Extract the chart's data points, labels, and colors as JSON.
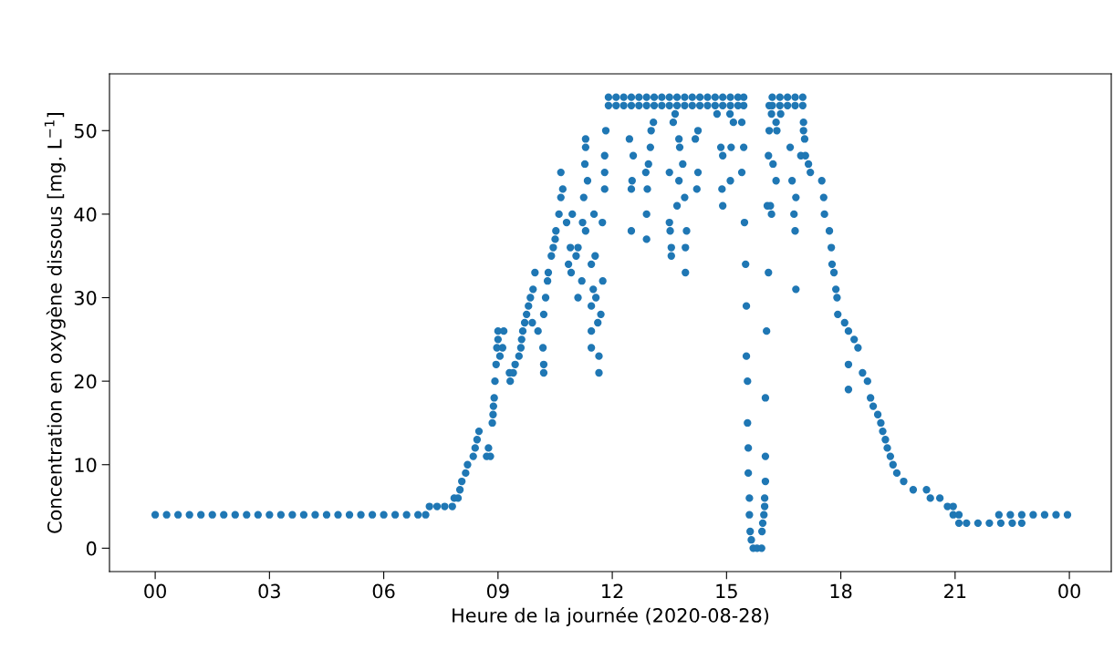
{
  "chart_data": {
    "type": "scatter",
    "xlabel": "Heure de la journée (2020-08-28)",
    "ylabel": "Concentration en oxygène dissous [mg. L$^{−1}$]",
    "marker": "circle",
    "xlim": [
      -1.2,
      25.1
    ],
    "ylim": [
      -2.8,
      56.8
    ],
    "xticks": [
      {
        "value": 0,
        "label": "00"
      },
      {
        "value": 3,
        "label": "03"
      },
      {
        "value": 6,
        "label": "06"
      },
      {
        "value": 9,
        "label": "09"
      },
      {
        "value": 12,
        "label": "12"
      },
      {
        "value": 15,
        "label": "15"
      },
      {
        "value": 18,
        "label": "18"
      },
      {
        "value": 21,
        "label": "21"
      },
      {
        "value": 24,
        "label": "00"
      }
    ],
    "yticks": [
      0,
      10,
      20,
      30,
      40,
      50
    ],
    "series": [
      {
        "color": "#1f77b4",
        "x": [
          0,
          0.3,
          0.6,
          0.9,
          1.2,
          1.5,
          1.8,
          2.1,
          2.4,
          2.7,
          3.0,
          3.3,
          3.6,
          3.9,
          4.2,
          4.5,
          4.8,
          5.1,
          5.4,
          5.7,
          6.0,
          6.3,
          6.6,
          6.9,
          7.1,
          7.2,
          7.4,
          7.6,
          7.8,
          7.85,
          7.95,
          8.0,
          8.05,
          8.15,
          8.2,
          8.35,
          8.4,
          8.45,
          8.5,
          8.7,
          8.8,
          8.75,
          8.85,
          8.87,
          8.88,
          8.9,
          8.92,
          8.95,
          8.97,
          9.0,
          9.0,
          9.15,
          9.05,
          9.12,
          9.3,
          9.32,
          9.4,
          9.45,
          9.55,
          9.6,
          9.62,
          9.65,
          9.7,
          9.75,
          9.8,
          9.85,
          9.92,
          9.97,
          9.9,
          10.05,
          10.18,
          10.2,
          10.2,
          10.2,
          10.25,
          10.3,
          10.32,
          10.4,
          10.45,
          10.5,
          10.52,
          10.6,
          10.65,
          10.7,
          10.65,
          10.8,
          10.95,
          10.9,
          10.85,
          10.92,
          11.05,
          11.1,
          11.2,
          11.1,
          11.22,
          11.25,
          11.35,
          11.28,
          11.3,
          11.3,
          11.3,
          11.45,
          11.5,
          11.45,
          11.45,
          11.45,
          11.57,
          11.62,
          11.65,
          11.65,
          11.7,
          11.75,
          11.55,
          11.52,
          11.74,
          11.8,
          11.8,
          11.8,
          11.83,
          11.9,
          11.9,
          12.1,
          12.1,
          12.3,
          12.3,
          12.5,
          12.5,
          12.7,
          12.7,
          12.9,
          12.9,
          13.1,
          13.1,
          13.3,
          13.3,
          13.5,
          13.5,
          13.7,
          13.7,
          13.9,
          13.9,
          14.1,
          14.1,
          14.3,
          14.3,
          14.5,
          14.5,
          14.7,
          14.7,
          14.9,
          14.9,
          15.1,
          15.1,
          15.3,
          15.3,
          15.45,
          15.45,
          12.5,
          12.5,
          12.52,
          12.55,
          12.45,
          12.9,
          12.9,
          12.92,
          12.88,
          12.95,
          13.0,
          13.02,
          13.08,
          13.5,
          13.52,
          13.55,
          13.55,
          13.5,
          13.7,
          13.75,
          13.77,
          13.75,
          13.65,
          13.6,
          13.92,
          13.92,
          13.95,
          13.9,
          13.85,
          14.18,
          14.25,
          14.25,
          14.22,
          14.75,
          14.9,
          14.88,
          14.9,
          14.85,
          15.1,
          15.12,
          15.18,
          15.09,
          15.4,
          15.45,
          15.4,
          15.47,
          15.5,
          15.52,
          15.52,
          15.55,
          15.55,
          15.57,
          15.57,
          15.6,
          15.6,
          15.62,
          15.65,
          15.7,
          15.8,
          15.92,
          15.93,
          15.95,
          15.98,
          16.0,
          16.0,
          16.02,
          16.02,
          16.02,
          16.05,
          16.1,
          16.07,
          16.1,
          16.12,
          16.12,
          16.2,
          16.2,
          16.4,
          16.4,
          16.6,
          16.6,
          16.8,
          16.8,
          17.0,
          17.0,
          16.3,
          16.22,
          16.15,
          16.18,
          16.18,
          16.3,
          16.32,
          16.42,
          16.67,
          16.72,
          16.8,
          16.82,
          16.77,
          16.82,
          16.95,
          17.02,
          17.02,
          17.05,
          17.07,
          17.15,
          17.2,
          17.5,
          17.55,
          17.57,
          17.7,
          17.75,
          17.77,
          17.87,
          17.82,
          17.9,
          17.92,
          18.1,
          18.2,
          18.35,
          18.45,
          18.2,
          18.2,
          18.57,
          18.7,
          18.78,
          18.85,
          18.97,
          19.05,
          19.1,
          19.17,
          19.22,
          19.3,
          19.37,
          19.47,
          19.65,
          19.9,
          20.25,
          20.35,
          20.6,
          20.8,
          20.95,
          20.95,
          21.1,
          21.1,
          21.3,
          21.6,
          21.9,
          22.2,
          22.5,
          22.75,
          22.15,
          22.45,
          22.75,
          23.05,
          23.35,
          23.65,
          23.95
        ],
        "values": [
          4,
          4,
          4,
          4,
          4,
          4,
          4,
          4,
          4,
          4,
          4,
          4,
          4,
          4,
          4,
          4,
          4,
          4,
          4,
          4,
          4,
          4,
          4,
          4,
          4,
          5,
          5,
          5,
          5,
          6,
          6,
          7,
          8,
          9,
          10,
          11,
          12,
          13,
          14,
          11,
          11,
          12,
          15,
          16,
          17,
          18,
          20,
          22,
          24,
          25,
          26,
          26,
          23,
          24,
          21,
          20,
          21,
          22,
          23,
          24,
          25,
          26,
          27,
          28,
          29,
          30,
          31,
          33,
          27,
          26,
          24,
          22,
          21,
          28,
          30,
          32,
          33,
          35,
          36,
          37,
          38,
          40,
          42,
          43,
          45,
          39,
          40,
          36,
          34,
          33,
          35,
          30,
          32,
          36,
          39,
          42,
          44,
          46,
          48,
          49,
          38,
          34,
          31,
          29,
          26,
          24,
          30,
          27,
          23,
          21,
          28,
          32,
          35,
          40,
          39,
          43,
          45,
          47,
          50,
          54,
          53,
          54,
          53,
          54,
          53,
          54,
          53,
          54,
          53,
          54,
          53,
          54,
          53,
          54,
          53,
          54,
          53,
          54,
          53,
          54,
          53,
          54,
          53,
          54,
          53,
          54,
          53,
          54,
          53,
          54,
          53,
          54,
          53,
          54,
          53,
          54,
          53,
          38,
          43,
          44,
          47,
          49,
          37,
          40,
          43,
          45,
          46,
          48,
          50,
          51,
          39,
          38,
          36,
          35,
          45,
          41,
          44,
          48,
          49,
          52,
          51,
          33,
          36,
          38,
          42,
          46,
          49,
          50,
          45,
          43,
          52,
          41,
          43,
          47,
          48,
          44,
          48,
          51,
          52,
          45,
          48,
          51,
          39,
          34,
          29,
          23,
          20,
          15,
          12,
          9,
          6,
          4,
          2,
          1,
          0,
          0,
          0,
          2,
          3,
          4,
          5,
          6,
          8,
          11,
          18,
          26,
          33,
          41,
          47,
          50,
          53,
          54,
          53,
          54,
          53,
          54,
          53,
          54,
          53,
          54,
          53,
          44,
          46,
          41,
          40,
          52,
          51,
          50,
          52,
          48,
          44,
          38,
          31,
          40,
          42,
          47,
          51,
          50,
          49,
          47,
          46,
          45,
          44,
          42,
          40,
          38,
          36,
          34,
          31,
          33,
          30,
          28,
          27,
          26,
          25,
          24,
          22,
          19,
          21,
          20,
          18,
          17,
          16,
          15,
          14,
          13,
          12,
          11,
          10,
          9,
          8,
          7,
          7,
          6,
          6,
          5,
          5,
          4,
          4,
          3,
          3,
          3,
          3,
          3,
          3,
          3,
          4,
          4,
          4,
          4,
          4,
          4,
          4
        ]
      }
    ]
  }
}
